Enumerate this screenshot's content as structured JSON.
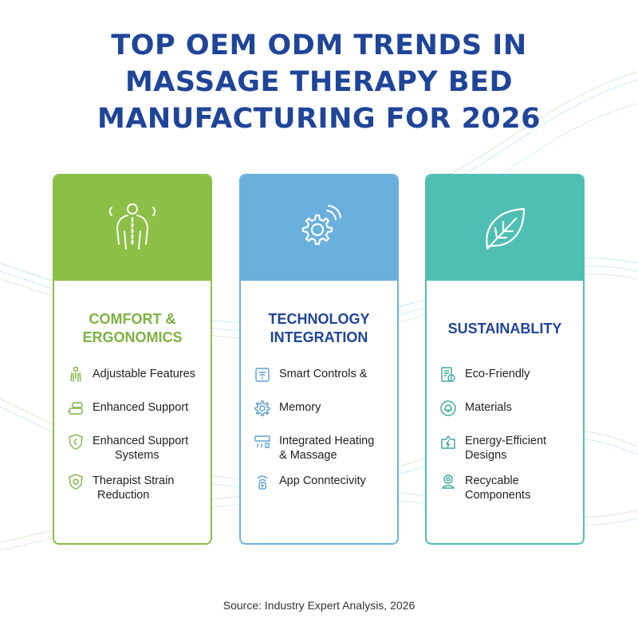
{
  "title_lines": [
    "TOP OEM ODM TRENDS IN",
    "MASSAGE THERAPY BED",
    "MANUFACTURING FOR 2026"
  ],
  "colors": {
    "title": "#1f4599",
    "green": "#8bbf45",
    "blue": "#6ab0df",
    "teal": "#4fbfb3",
    "green_text": "#7cb342",
    "blue_text": "#1f4599",
    "teal_text": "#1f4599"
  },
  "cards": [
    {
      "title_lines": [
        "COMFORT &",
        "ERGONOMICS"
      ],
      "icon": "spine-torso-icon",
      "items": [
        {
          "icon": "body-icon",
          "lines": [
            "Adjustable Features"
          ]
        },
        {
          "icon": "cushion-icon",
          "lines": [
            "Enhanced Support"
          ]
        },
        {
          "icon": "shield-icon",
          "lines": [
            "Enhanced Support",
            "Systems"
          ]
        },
        {
          "icon": "shield-hand-icon",
          "lines": [
            "Therapist Strain",
            "Reduction"
          ]
        }
      ]
    },
    {
      "title_lines": [
        "TECHNOLOGY",
        "INTEGRATION"
      ],
      "icon": "gear-wireless-icon",
      "items": [
        {
          "icon": "remote-control-icon",
          "lines": [
            "Smart Controls &"
          ]
        },
        {
          "icon": "gear-icon",
          "lines": [
            "Memory"
          ]
        },
        {
          "icon": "heating-icon",
          "lines": [
            "Integrated Heating",
            "& Massage"
          ]
        },
        {
          "icon": "app-wifi-icon",
          "lines": [
            "App Conntecivity"
          ]
        }
      ]
    },
    {
      "title_lines": [
        "SUSTAINABLITY"
      ],
      "icon": "leaf-icon",
      "items": [
        {
          "icon": "eco-document-icon",
          "lines": [
            "Eco-Friendly"
          ]
        },
        {
          "icon": "materials-icon",
          "lines": [
            "Materials"
          ]
        },
        {
          "icon": "energy-icon",
          "lines": [
            "Energy-Efficient",
            "Designs"
          ]
        },
        {
          "icon": "recycle-component-icon",
          "lines": [
            "Recycable",
            "Components"
          ]
        }
      ]
    }
  ],
  "source": "Source: Industry Expert Analysis, 2026"
}
